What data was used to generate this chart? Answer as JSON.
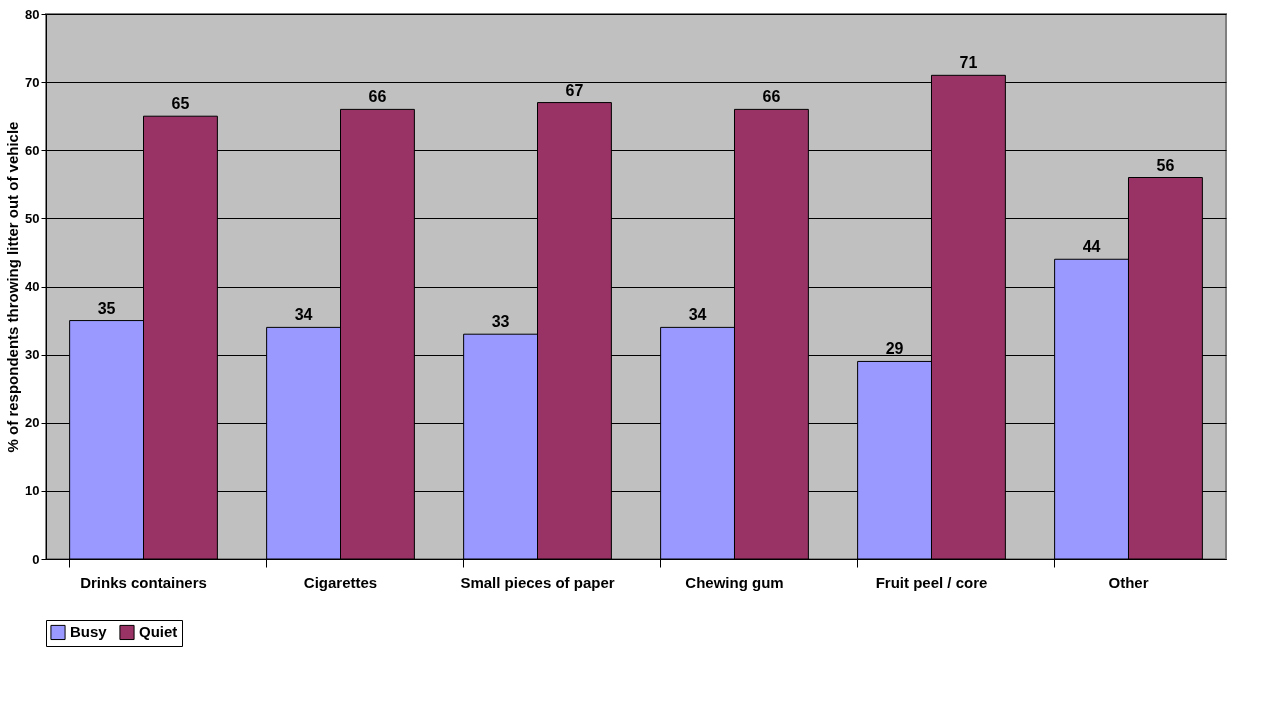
{
  "chart_data": {
    "type": "bar",
    "ylabel": "% of respondents throwing litter out of vehicle",
    "categories": [
      "Drinks containers",
      "Cigarettes",
      "Small pieces of paper",
      "Chewing gum",
      "Fruit peel / core",
      "Other"
    ],
    "series": [
      {
        "name": "Busy",
        "color": "#9999ff",
        "values": [
          35,
          34,
          33,
          34,
          29,
          44
        ]
      },
      {
        "name": "Quiet",
        "color": "#993366",
        "values": [
          65,
          66,
          67,
          66,
          71,
          56
        ]
      }
    ],
    "ylim": [
      0,
      80
    ],
    "yticks": [
      0,
      10,
      20,
      30,
      40,
      50,
      60,
      70,
      80
    ],
    "grid": "y",
    "legend": "bottom",
    "data_labels": true
  }
}
